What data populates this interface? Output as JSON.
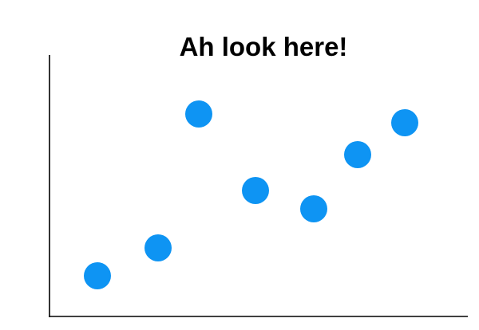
{
  "chart_data": {
    "type": "scatter",
    "title": "Ah look here!",
    "xlabel": "",
    "ylabel": "",
    "points": [
      {
        "x": 1.0,
        "y": 0.9
      },
      {
        "x": 2.1,
        "y": 1.8
      },
      {
        "x": 2.8,
        "y": 7.4
      },
      {
        "x": 3.9,
        "y": 4.0
      },
      {
        "x": 4.95,
        "y": 3.3
      },
      {
        "x": 5.7,
        "y": 5.5
      },
      {
        "x": 6.6,
        "y": 7.1
      }
    ],
    "xlim": [
      0,
      7.5
    ],
    "ylim": [
      0,
      9
    ],
    "grid": false,
    "ticks_shown": false,
    "point_color": "#0e94f3",
    "axis_color": "#000000",
    "title_color": "#000000"
  }
}
